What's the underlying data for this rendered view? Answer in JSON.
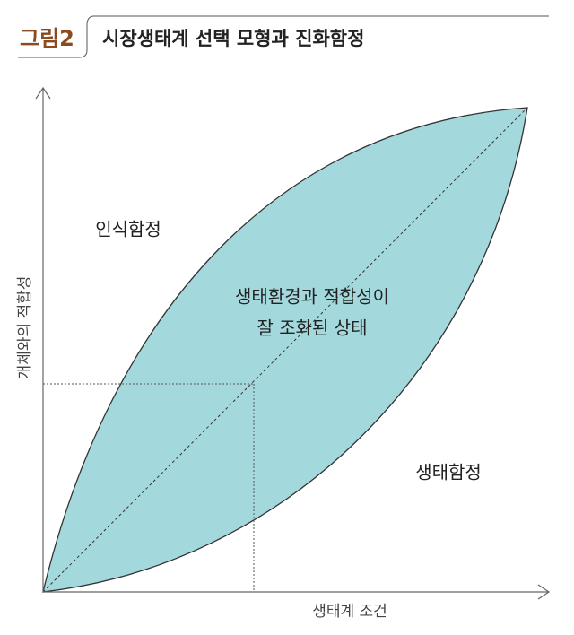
{
  "header": {
    "label": "그림2",
    "title": "시장생태계 선택 모형과 진화함정"
  },
  "axes": {
    "y_label": "개체와의 적합성",
    "x_label": "생태계 조건"
  },
  "regions": {
    "upper": "인식함정",
    "center": [
      "생태환경과 적합성이",
      "잘 조화된 상태"
    ],
    "lower": "생태함정"
  }
}
